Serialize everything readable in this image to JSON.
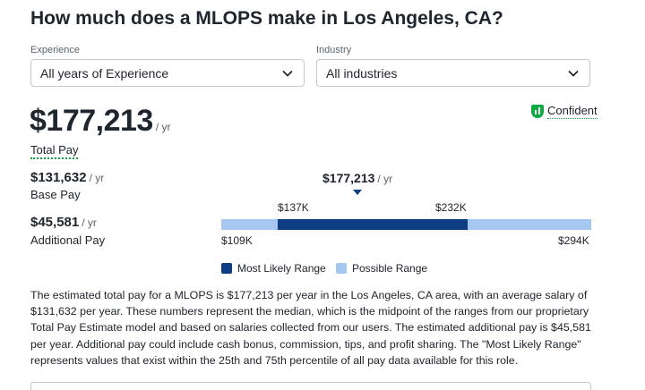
{
  "title": "How much does a MLOPS make in Los Angeles, CA?",
  "filters": {
    "experience": {
      "label": "Experience",
      "value": "All years of Experience",
      "icon": "chevron-down-icon"
    },
    "industry": {
      "label": "Industry",
      "value": "All industries",
      "icon": "chevron-down-icon"
    }
  },
  "confidence": {
    "label": "Confident",
    "icon": "confidence-bars-icon",
    "color": "#0caa41"
  },
  "total_pay": {
    "amount": "$177,213",
    "unit": "/ yr",
    "label": "Total Pay"
  },
  "base_pay": {
    "amount": "$131,632",
    "unit": "/ yr",
    "label": "Base Pay"
  },
  "additional_pay": {
    "amount": "$45,581",
    "unit": "/ yr",
    "label": "Additional Pay"
  },
  "range": {
    "median_amount": "$177,213",
    "median_unit": "/ yr",
    "likely_low_label": "$137K",
    "likely_high_label": "$232K",
    "min_label": "$109K",
    "max_label": "$294K",
    "min_value": 109,
    "max_value": 294,
    "likely_low": 137,
    "likely_high": 232,
    "median": 177.213,
    "likely_color": "#0d3e83",
    "possible_color": "#a6c8f0"
  },
  "legend": {
    "likely": "Most Likely Range",
    "possible": "Possible Range"
  },
  "description": "The estimated total pay for a MLOPS is $177,213 per year in the Los Angeles, CA area, with an average salary of $131,632 per year. These numbers represent the median, which is the midpoint of the ranges from our proprietary Total Pay Estimate model and based on salaries collected from our users. The estimated additional pay is $45,581 per year. Additional pay could include cash bonus, commission, tips, and profit sharing. The \"Most Likely Range\" represents values that exist within the 25th and 75th percentile of all pay data available for this role."
}
